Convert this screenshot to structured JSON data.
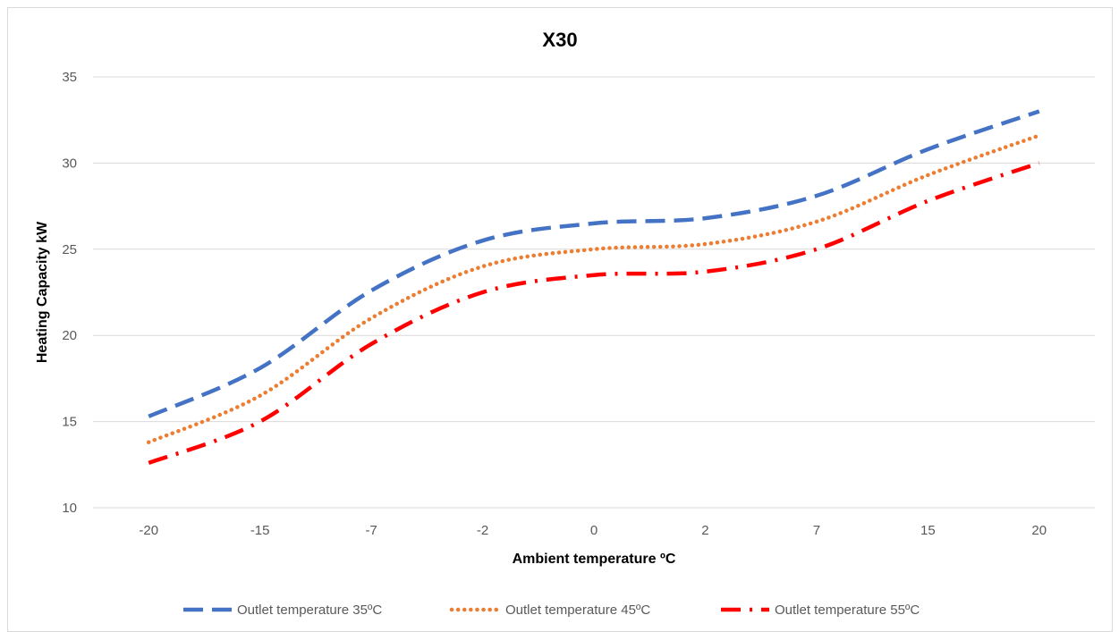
{
  "chart_data": {
    "type": "line",
    "title": "X30",
    "xlabel": "Ambient temperature ºC",
    "ylabel": "Heating Capacity kW",
    "categories": [
      "-20",
      "-15",
      "-7",
      "-2",
      "0",
      "2",
      "7",
      "15",
      "20"
    ],
    "ylim": [
      10,
      35
    ],
    "yticks": [
      10,
      15,
      20,
      25,
      30,
      35
    ],
    "grid": true,
    "legend_position": "bottom",
    "series": [
      {
        "name": "Outlet temperature 35ºC",
        "color": "#4472C4",
        "dash": "dashed",
        "values": [
          15.3,
          18.1,
          22.6,
          25.5,
          26.5,
          26.8,
          28.1,
          30.8,
          33.0
        ]
      },
      {
        "name": "Outlet temperature 45ºC",
        "color": "#ED7D31",
        "dash": "dotted",
        "values": [
          13.8,
          16.5,
          21.0,
          24.0,
          25.0,
          25.3,
          26.6,
          29.3,
          31.6
        ]
      },
      {
        "name": "Outlet temperature 55ºC",
        "color": "#FF0000",
        "dash": "dashdot",
        "values": [
          12.6,
          15.0,
          19.5,
          22.5,
          23.5,
          23.7,
          25.0,
          27.8,
          30.0
        ]
      }
    ]
  }
}
